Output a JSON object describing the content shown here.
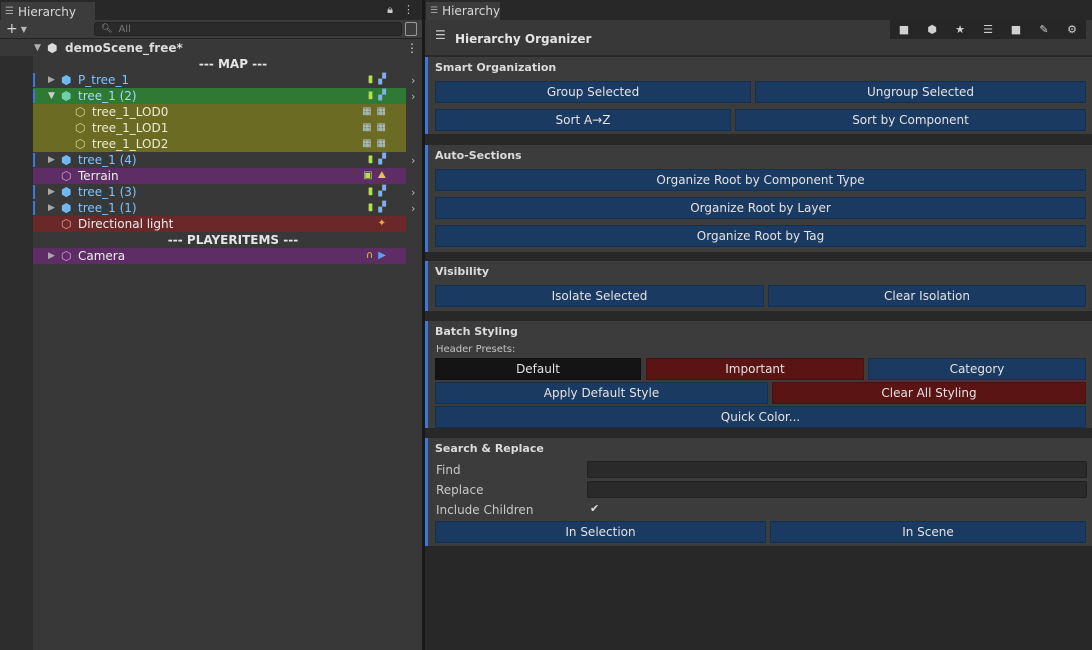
{
  "left_panel": {
    "tab_label": "Hierarchy",
    "search_placeholder": "All",
    "scene_name": "demoScene_free*",
    "sections": [
      "--- MAP ---",
      "--- PLAYERITEMS ---"
    ],
    "items": [
      {
        "label": "P_tree_1",
        "color": "#7fc3ff"
      },
      {
        "label": "tree_1 (2)",
        "color": "#7fc3ff"
      },
      {
        "label": "tree_1_LOD0",
        "color": "#e8e8c8"
      },
      {
        "label": "tree_1_LOD1",
        "color": "#e8e8c8"
      },
      {
        "label": "tree_1_LOD2",
        "color": "#e8e8c8"
      },
      {
        "label": "tree_1 (4)",
        "color": "#7fc3ff"
      },
      {
        "label": "Terrain",
        "color": "#e6e6e6"
      },
      {
        "label": "tree_1 (3)",
        "color": "#7fc3ff"
      },
      {
        "label": "tree_1 (1)",
        "color": "#7fc3ff"
      },
      {
        "label": "Directional light",
        "color": "#e6e6e6"
      },
      {
        "label": "Camera",
        "color": "#e6e6e6"
      }
    ]
  },
  "right_panel": {
    "tab_label": "Hierarchy",
    "title": "Hierarchy Organizer",
    "smart_organization": {
      "title": "Smart Organization",
      "group_selected": "Group Selected",
      "ungroup_selected": "Ungroup Selected",
      "sort_az": "Sort A→Z",
      "sort_by_component": "Sort by Component"
    },
    "auto_sections": {
      "title": "Auto-Sections",
      "by_component": "Organize Root by Component Type",
      "by_layer": "Organize Root by Layer",
      "by_tag": "Organize Root by Tag"
    },
    "visibility": {
      "title": "Visibility",
      "isolate": "Isolate Selected",
      "clear": "Clear Isolation"
    },
    "batch_styling": {
      "title": "Batch Styling",
      "presets_label": "Header Presets:",
      "preset_default": "Default",
      "preset_important": "Important",
      "preset_category": "Category",
      "apply_default": "Apply Default Style",
      "clear_all": "Clear All Styling",
      "quick_color": "Quick Color..."
    },
    "search_replace": {
      "title": "Search & Replace",
      "find_label": "Find",
      "find_value": "",
      "replace_label": "Replace",
      "replace_value": "",
      "include_children_label": "Include Children",
      "include_children_checked": true,
      "in_selection": "In Selection",
      "in_scene": "In Scene"
    }
  },
  "colors": {
    "accent": "#3a79d8",
    "button_blue": "#1b3a62",
    "button_red": "#5a1414",
    "row_green": "#2e7a34",
    "row_olive": "#6b6b24",
    "row_purple": "#5e2d66",
    "row_red": "#6a2828"
  }
}
